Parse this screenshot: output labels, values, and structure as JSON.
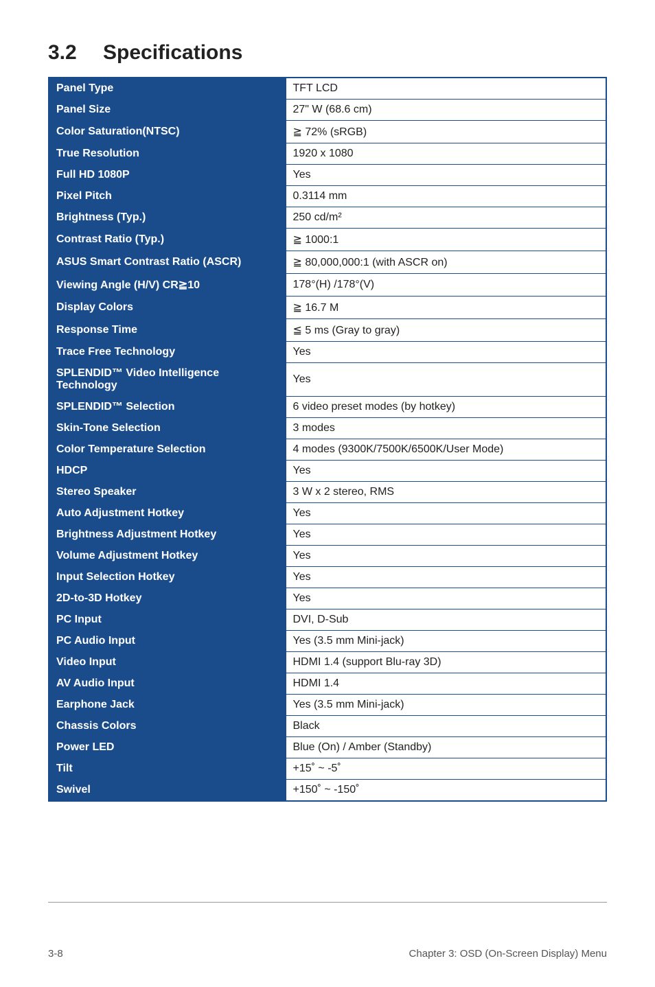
{
  "heading": {
    "number": "3.2",
    "title": "Specifications"
  },
  "table": {
    "label_bg": "#1a4c8b",
    "label_color": "#ffffff",
    "border_color": "#1a4c8b",
    "rows": [
      {
        "label": "Panel Type",
        "value": "TFT LCD"
      },
      {
        "label": "Panel Size",
        "value": "27\" W (68.6 cm)"
      },
      {
        "label": "Color Saturation(NTSC)",
        "value": "≧ 72% (sRGB)"
      },
      {
        "label": "True Resolution",
        "value": "1920 x 1080"
      },
      {
        "label": "Full HD 1080P",
        "value": "Yes"
      },
      {
        "label": "Pixel Pitch",
        "value": "0.3114 mm"
      },
      {
        "label": "Brightness (Typ.)",
        "value": "250 cd/m²"
      },
      {
        "label": "Contrast Ratio (Typ.)",
        "value": "≧ 1000:1"
      },
      {
        "label": "ASUS Smart Contrast Ratio (ASCR)",
        "value": "≧ 80,000,000:1 (with ASCR on)"
      },
      {
        "label": "Viewing Angle (H/V) CR≧10",
        "value": "178°(H) /178°(V)"
      },
      {
        "label": "Display Colors",
        "value": "≧ 16.7 M"
      },
      {
        "label": "Response Time",
        "value": "≦ 5 ms (Gray to gray)"
      },
      {
        "label": "Trace Free Technology",
        "value": "Yes"
      },
      {
        "label": "SPLENDID™ Video Intelligence Technology",
        "value": "Yes"
      },
      {
        "label": "SPLENDID™ Selection",
        "value": "6 video preset modes (by hotkey)"
      },
      {
        "label": "Skin-Tone Selection",
        "value": "3 modes"
      },
      {
        "label": "Color Temperature Selection",
        "value": "4 modes (9300K/7500K/6500K/User Mode)"
      },
      {
        "label": "HDCP",
        "value": "Yes"
      },
      {
        "label": "Stereo Speaker",
        "value": "3 W x 2 stereo, RMS"
      },
      {
        "label": "Auto Adjustment Hotkey",
        "value": "Yes"
      },
      {
        "label": "Brightness Adjustment Hotkey",
        "value": "Yes"
      },
      {
        "label": "Volume Adjustment Hotkey",
        "value": "Yes"
      },
      {
        "label": "Input Selection Hotkey",
        "value": "Yes"
      },
      {
        "label": "2D-to-3D Hotkey",
        "value": "Yes"
      },
      {
        "label": "PC Input",
        "value": "DVI, D-Sub"
      },
      {
        "label": "PC Audio Input",
        "value": "Yes (3.5 mm Mini-jack)"
      },
      {
        "label": "Video Input",
        "value": "HDMI 1.4 (support Blu-ray 3D)"
      },
      {
        "label": "AV Audio Input",
        "value": "HDMI 1.4"
      },
      {
        "label": "Earphone Jack",
        "value": "Yes (3.5 mm Mini-jack)"
      },
      {
        "label": "Chassis Colors",
        "value": "Black"
      },
      {
        "label": "Power LED",
        "value": "Blue (On) / Amber (Standby)"
      },
      {
        "label": "Tilt",
        "value": "+15˚ ~ -5˚"
      },
      {
        "label": "Swivel",
        "value": "+150˚ ~ -150˚"
      }
    ]
  },
  "footer": {
    "left": "3-8",
    "right": "Chapter 3: OSD (On-Screen Display) Menu"
  }
}
